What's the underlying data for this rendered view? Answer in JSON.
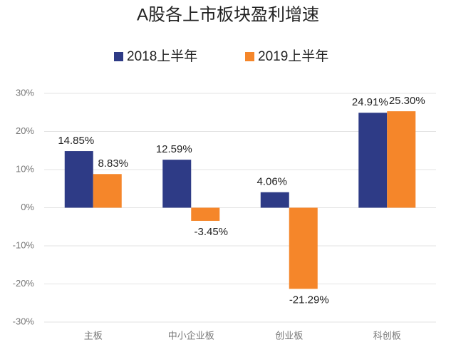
{
  "chart_data": {
    "type": "bar",
    "title": "A股各上市板块盈利增速",
    "categories": [
      "主板",
      "中小企业板",
      "创业板",
      "科创板"
    ],
    "series": [
      {
        "name": "2018上半年",
        "color": "#2e3b86",
        "values": [
          14.85,
          12.59,
          4.06,
          24.91
        ],
        "value_labels": [
          "14.85%",
          "12.59%",
          "4.06%",
          "24.91%"
        ]
      },
      {
        "name": "2019上半年",
        "color": "#f5862a",
        "values": [
          8.83,
          -3.45,
          -21.29,
          25.3
        ],
        "value_labels": [
          "8.83%",
          "-3.45%",
          "-21.29%",
          "25.30%"
        ]
      }
    ],
    "ylim": [
      -30,
      30
    ],
    "yticks": [
      {
        "value": -30,
        "label": "-30%"
      },
      {
        "value": -20,
        "label": "-20%"
      },
      {
        "value": -10,
        "label": "-10%"
      },
      {
        "value": 0,
        "label": "0%"
      },
      {
        "value": 10,
        "label": "10%"
      },
      {
        "value": 20,
        "label": "20%"
      },
      {
        "value": 30,
        "label": "30%"
      }
    ],
    "grid": true,
    "legend": "top"
  }
}
